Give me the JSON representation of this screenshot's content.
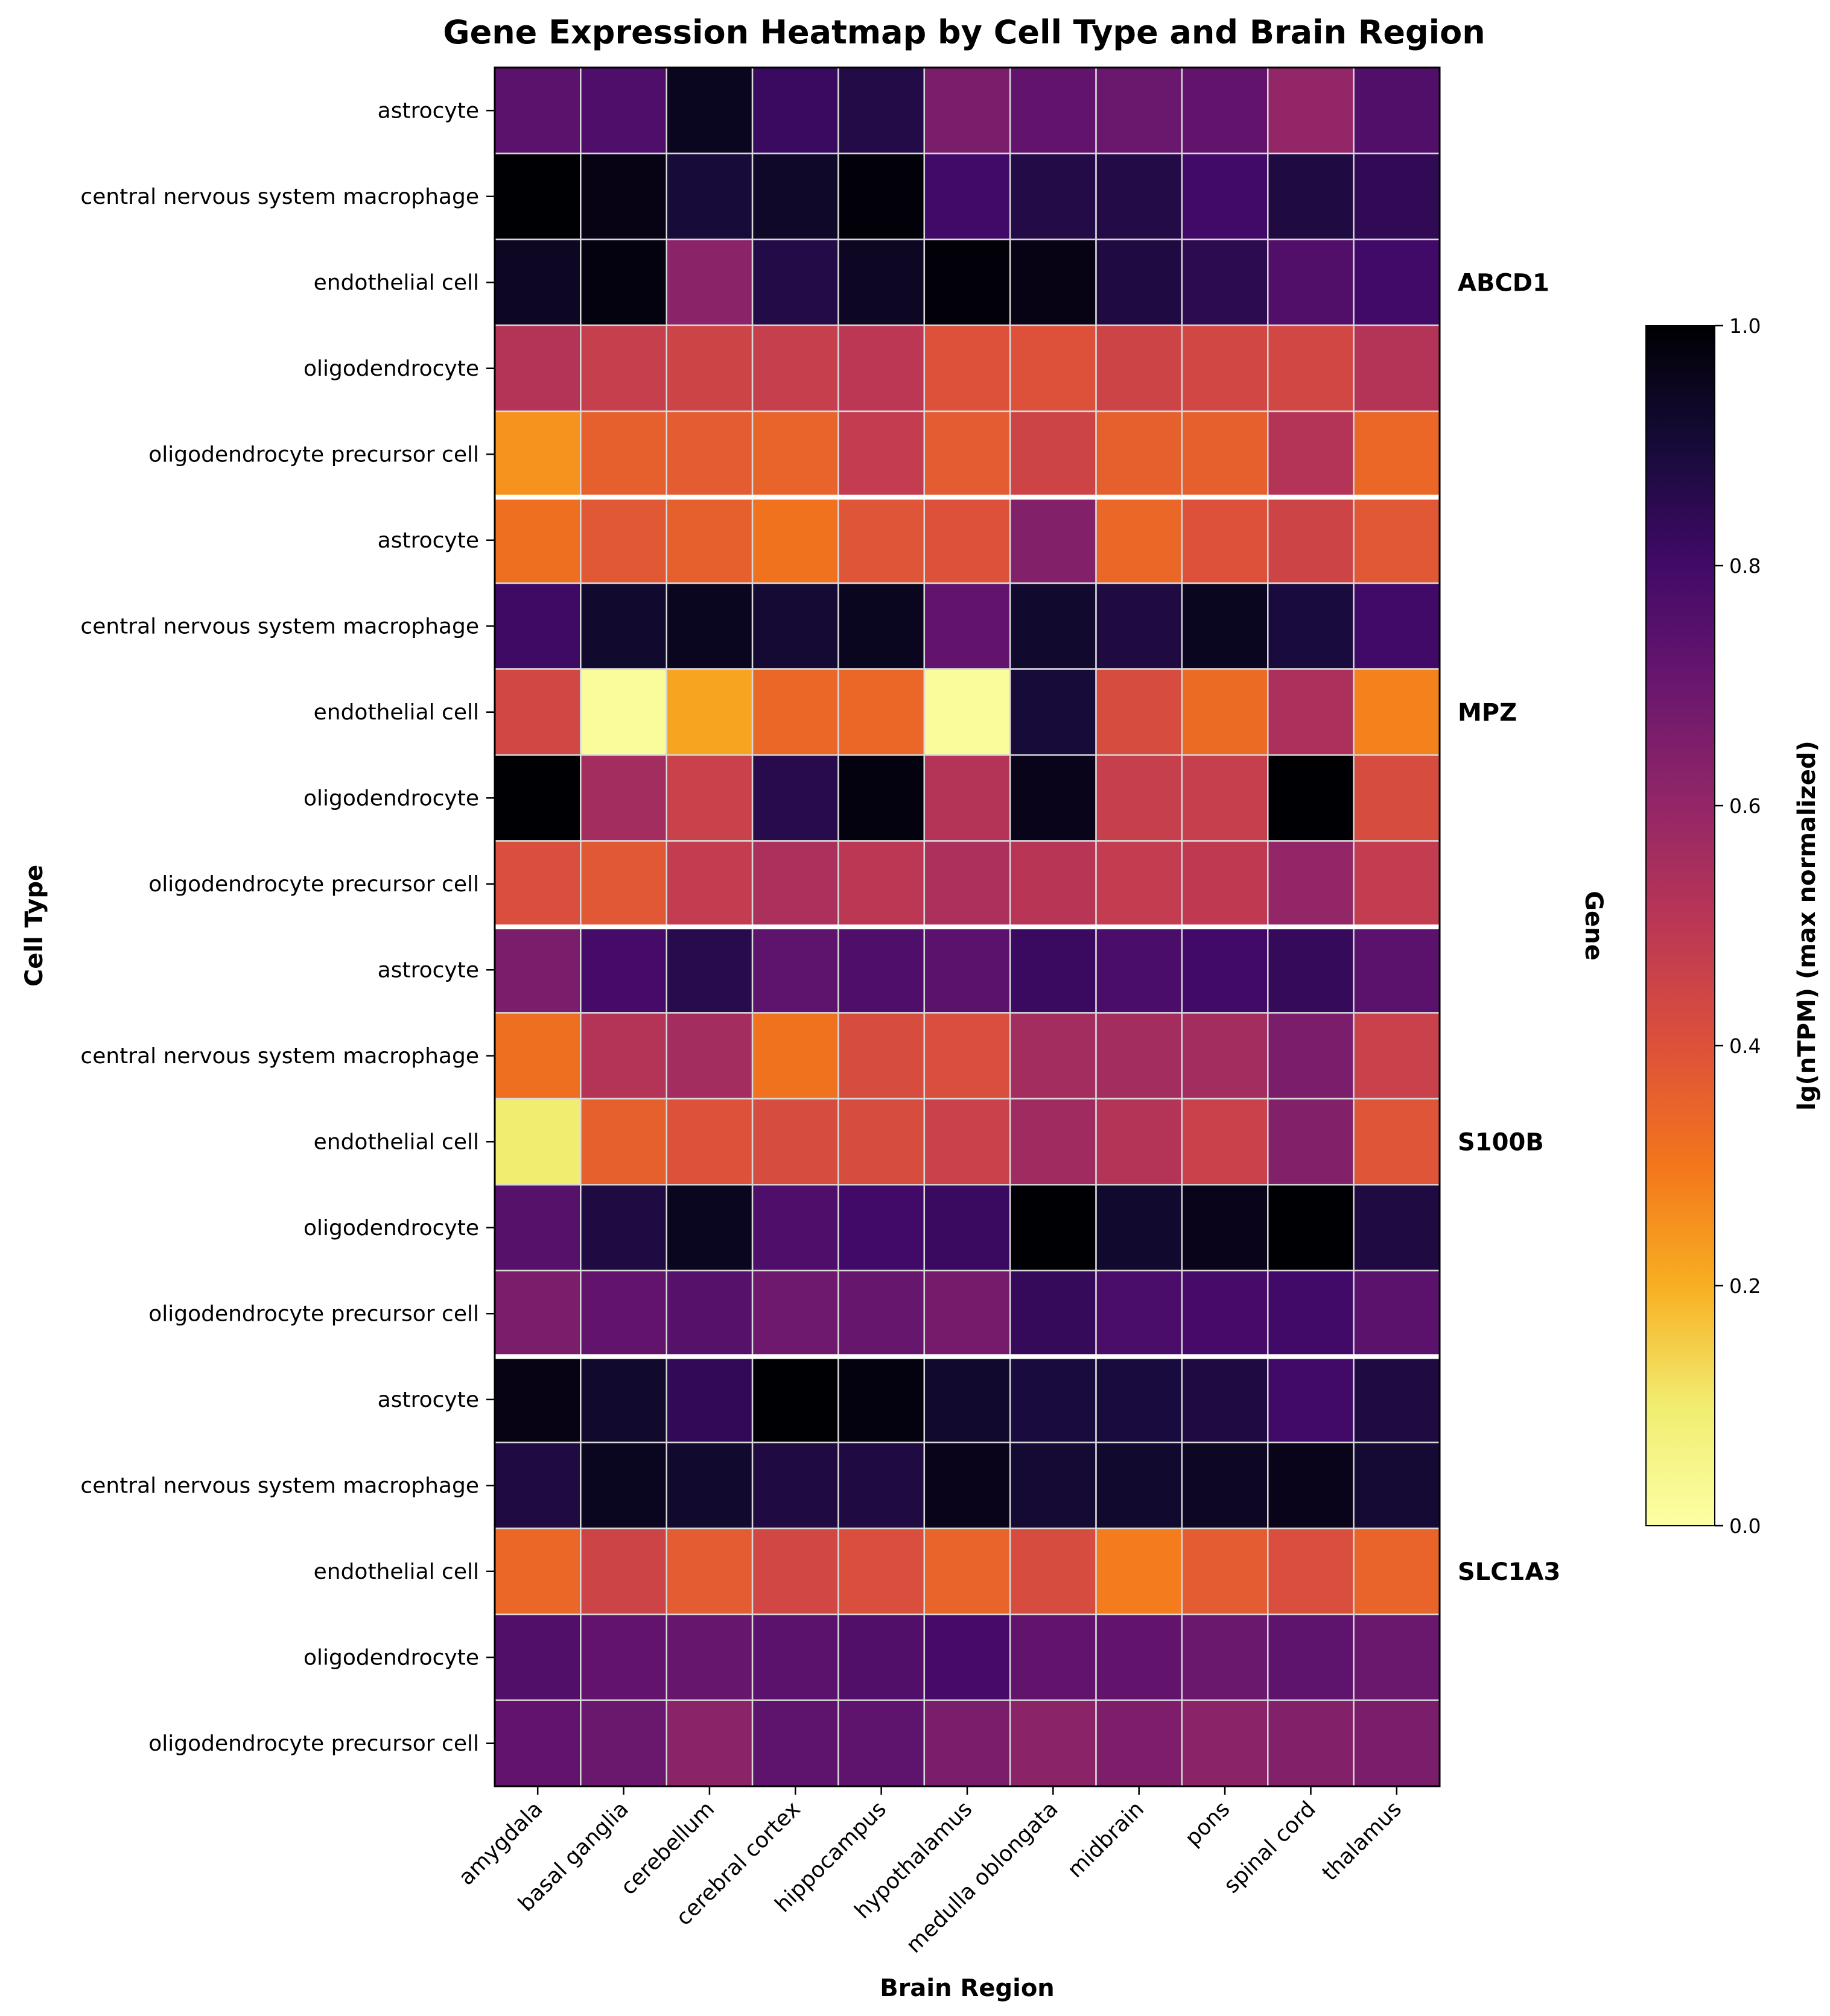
{
  "chart_data": {
    "type": "heatmap",
    "title": "Gene Expression Heatmap by Cell Type and Brain Region",
    "xlabel": "Brain Region",
    "ylabel": "Cell Type",
    "right_axis_label": "Gene",
    "colorbar_label": "lg(nTPM) (max normalized)",
    "colormap": "inferno_r",
    "value_range": [
      0.0,
      1.0
    ],
    "colorbar_ticks": [
      "0.0",
      "0.2",
      "0.4",
      "0.6",
      "0.8",
      "1.0"
    ],
    "columns": [
      "amygdala",
      "basal ganglia",
      "cerebellum",
      "cerebral cortex",
      "hippocampus",
      "hypothalamus",
      "medulla oblongata",
      "midbrain",
      "pons",
      "spinal cord",
      "thalamus"
    ],
    "groups": [
      {
        "gene": "ABCD1",
        "rows": [
          {
            "cell_type": "astrocyte",
            "values": [
              0.74,
              0.77,
              0.95,
              0.82,
              0.87,
              0.66,
              0.72,
              0.7,
              0.72,
              0.6,
              0.76
            ]
          },
          {
            "cell_type": "central nervous system macrophage",
            "values": [
              1.0,
              0.97,
              0.9,
              0.93,
              0.99,
              0.8,
              0.87,
              0.87,
              0.8,
              0.88,
              0.84
            ]
          },
          {
            "cell_type": "endothelial cell",
            "values": [
              0.94,
              0.98,
              0.62,
              0.87,
              0.94,
              0.99,
              0.97,
              0.88,
              0.85,
              0.76,
              0.8
            ]
          },
          {
            "cell_type": "oligodendrocyte",
            "values": [
              0.52,
              0.47,
              0.45,
              0.47,
              0.5,
              0.4,
              0.4,
              0.45,
              0.44,
              0.44,
              0.52
            ]
          },
          {
            "cell_type": "oligodendrocyte precursor cell",
            "values": [
              0.25,
              0.36,
              0.37,
              0.35,
              0.48,
              0.37,
              0.45,
              0.36,
              0.36,
              0.52,
              0.34
            ]
          }
        ]
      },
      {
        "gene": "MPZ",
        "rows": [
          {
            "cell_type": "astrocyte",
            "values": [
              0.32,
              0.38,
              0.36,
              0.31,
              0.39,
              0.4,
              0.64,
              0.34,
              0.4,
              0.45,
              0.38
            ]
          },
          {
            "cell_type": "central nervous system macrophage",
            "values": [
              0.81,
              0.92,
              0.95,
              0.91,
              0.95,
              0.72,
              0.92,
              0.88,
              0.95,
              0.89,
              0.8
            ]
          },
          {
            "cell_type": "endothelial cell",
            "values": [
              0.44,
              0.02,
              0.22,
              0.34,
              0.34,
              0.02,
              0.9,
              0.42,
              0.33,
              0.54,
              0.28
            ]
          },
          {
            "cell_type": "oligodendrocyte",
            "values": [
              1.0,
              0.56,
              0.46,
              0.86,
              0.98,
              0.52,
              0.96,
              0.47,
              0.47,
              1.0,
              0.42
            ]
          },
          {
            "cell_type": "oligodendrocyte precursor cell",
            "values": [
              0.41,
              0.38,
              0.48,
              0.54,
              0.5,
              0.54,
              0.51,
              0.48,
              0.49,
              0.6,
              0.48
            ]
          }
        ]
      },
      {
        "gene": "S100B",
        "rows": [
          {
            "cell_type": "astrocyte",
            "values": [
              0.66,
              0.79,
              0.86,
              0.73,
              0.77,
              0.74,
              0.82,
              0.78,
              0.8,
              0.83,
              0.74
            ]
          },
          {
            "cell_type": "central nervous system macrophage",
            "values": [
              0.32,
              0.52,
              0.56,
              0.31,
              0.42,
              0.41,
              0.56,
              0.56,
              0.56,
              0.66,
              0.46
            ]
          },
          {
            "cell_type": "endothelial cell",
            "values": [
              0.1,
              0.36,
              0.4,
              0.42,
              0.42,
              0.46,
              0.57,
              0.52,
              0.46,
              0.64,
              0.39
            ]
          },
          {
            "cell_type": "oligodendrocyte",
            "values": [
              0.75,
              0.88,
              0.95,
              0.77,
              0.8,
              0.82,
              1.0,
              0.92,
              0.96,
              1.0,
              0.88
            ]
          },
          {
            "cell_type": "oligodendrocyte precursor cell",
            "values": [
              0.66,
              0.72,
              0.75,
              0.69,
              0.71,
              0.67,
              0.83,
              0.78,
              0.79,
              0.8,
              0.74
            ]
          }
        ]
      },
      {
        "gene": "SLC1A3",
        "rows": [
          {
            "cell_type": "astrocyte",
            "values": [
              0.97,
              0.92,
              0.84,
              1.0,
              0.98,
              0.92,
              0.89,
              0.89,
              0.88,
              0.8,
              0.88
            ]
          },
          {
            "cell_type": "central nervous system macrophage",
            "values": [
              0.88,
              0.95,
              0.92,
              0.88,
              0.88,
              0.96,
              0.91,
              0.92,
              0.94,
              0.96,
              0.91
            ]
          },
          {
            "cell_type": "endothelial cell",
            "values": [
              0.34,
              0.45,
              0.37,
              0.44,
              0.41,
              0.35,
              0.42,
              0.29,
              0.37,
              0.41,
              0.35
            ]
          },
          {
            "cell_type": "oligodendrocyte",
            "values": [
              0.76,
              0.72,
              0.71,
              0.74,
              0.76,
              0.79,
              0.72,
              0.72,
              0.7,
              0.73,
              0.7
            ]
          },
          {
            "cell_type": "oligodendrocyte precursor cell",
            "values": [
              0.72,
              0.7,
              0.62,
              0.73,
              0.73,
              0.66,
              0.62,
              0.65,
              0.62,
              0.64,
              0.66
            ]
          }
        ]
      }
    ]
  }
}
